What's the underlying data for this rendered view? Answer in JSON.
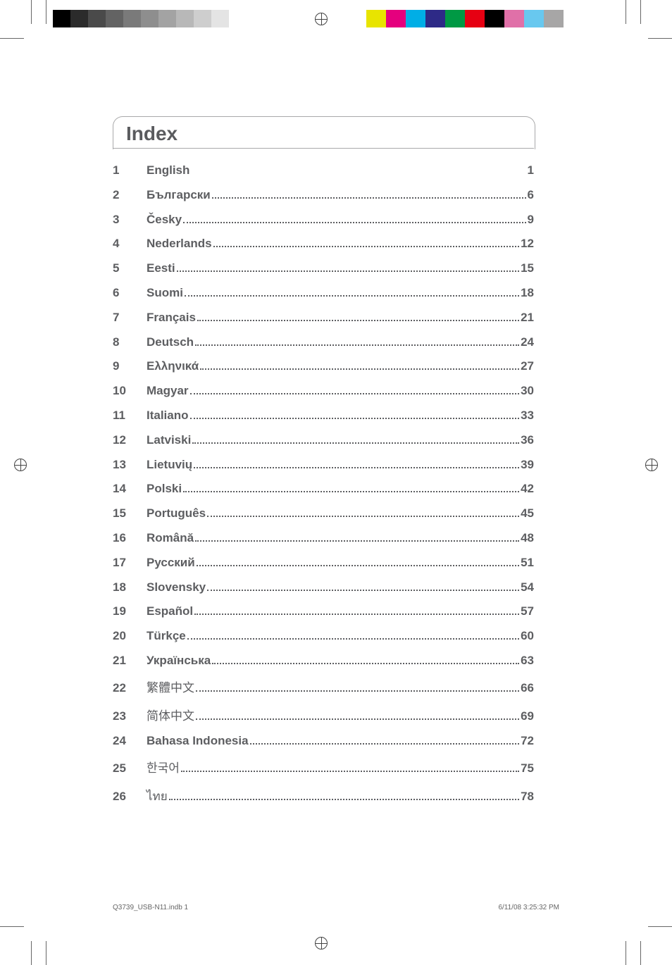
{
  "title": "Index",
  "entries": [
    {
      "num": "1",
      "lang": "English",
      "page": "1",
      "cjk": false,
      "dotted": false
    },
    {
      "num": "2",
      "lang": "Български",
      "page": "6",
      "cjk": false,
      "dotted": true
    },
    {
      "num": "3",
      "lang": "Česky",
      "page": "9",
      "cjk": false,
      "dotted": true
    },
    {
      "num": "4",
      "lang": "Nederlands",
      "page": "12",
      "cjk": false,
      "dotted": true
    },
    {
      "num": "5",
      "lang": "Eesti",
      "page": "15",
      "cjk": false,
      "dotted": true
    },
    {
      "num": "6",
      "lang": "Suomi",
      "page": "18",
      "cjk": false,
      "dotted": true
    },
    {
      "num": "7",
      "lang": "Français",
      "page": "21",
      "cjk": false,
      "dotted": true
    },
    {
      "num": "8",
      "lang": "Deutsch",
      "page": "24",
      "cjk": false,
      "dotted": true
    },
    {
      "num": "9",
      "lang": "Ελληνικά",
      "page": "27",
      "cjk": false,
      "dotted": true
    },
    {
      "num": "10",
      "lang": "Magyar",
      "page": "30",
      "cjk": false,
      "dotted": true
    },
    {
      "num": "11",
      "lang": "Italiano",
      "page": "33",
      "cjk": false,
      "dotted": true
    },
    {
      "num": "12",
      "lang": "Latviski",
      "page": "36",
      "cjk": false,
      "dotted": true
    },
    {
      "num": "13",
      "lang": "Lietuvių",
      "page": "39",
      "cjk": false,
      "dotted": true
    },
    {
      "num": "14",
      "lang": "Polski",
      "page": "42",
      "cjk": false,
      "dotted": true
    },
    {
      "num": "15",
      "lang": "Português",
      "page": "45",
      "cjk": false,
      "dotted": true
    },
    {
      "num": "16",
      "lang": "Română",
      "page": "48",
      "cjk": false,
      "dotted": true
    },
    {
      "num": "17",
      "lang": "Русский",
      "page": "51",
      "cjk": false,
      "dotted": true
    },
    {
      "num": "18",
      "lang": "Slovensky",
      "page": "54",
      "cjk": false,
      "dotted": true
    },
    {
      "num": "19",
      "lang": "Español",
      "page": "57",
      "cjk": false,
      "dotted": true
    },
    {
      "num": "20",
      "lang": "Türkçe",
      "page": "60",
      "cjk": false,
      "dotted": true
    },
    {
      "num": "21",
      "lang": "Українська",
      "page": "63",
      "cjk": false,
      "dotted": true
    },
    {
      "num": "22",
      "lang": "繁體中文",
      "page": "66",
      "cjk": true,
      "dotted": true
    },
    {
      "num": "23",
      "lang": "简体中文",
      "page": "69",
      "cjk": true,
      "dotted": true
    },
    {
      "num": "24",
      "lang": "Bahasa Indonesia",
      "page": "72",
      "cjk": false,
      "dotted": true
    },
    {
      "num": "25",
      "lang": "한국어",
      "page": "75",
      "cjk": true,
      "dotted": true
    },
    {
      "num": "26",
      "lang": "ไทย",
      "page": "78",
      "cjk": true,
      "dotted": true
    }
  ],
  "footer": {
    "left": "Q3739_USB-N11.indb   1",
    "right": "6/11/08   3:25:32 PM"
  },
  "print_marks": {
    "gray_bar_colors": [
      "#000000",
      "#2b2b2b",
      "#4a4a4a",
      "#636363",
      "#7a7a7a",
      "#8e8e8e",
      "#a3a3a3",
      "#b8b8b8",
      "#cecece",
      "#e4e4e4"
    ],
    "color_bar_colors": [
      "#e8e400",
      "#e5007e",
      "#00aee6",
      "#2e2a87",
      "#009944",
      "#e60012",
      "#000000",
      "#e070a8",
      "#68c8ef",
      "#a7a6a6"
    ]
  }
}
